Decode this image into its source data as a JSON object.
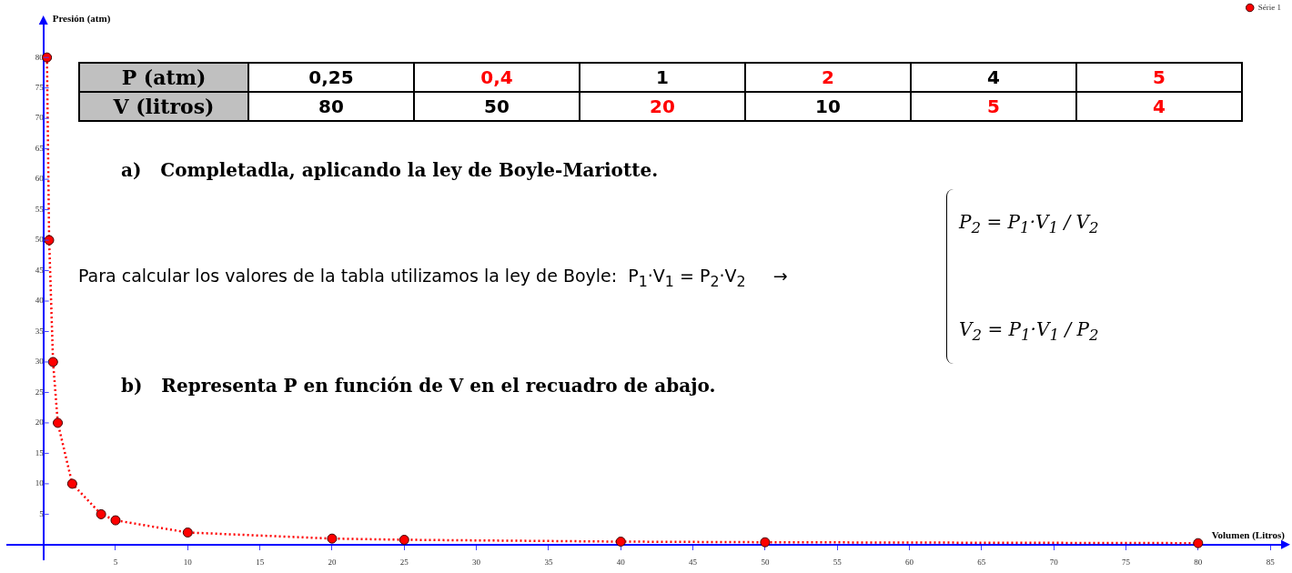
{
  "chart_data": {
    "type": "line",
    "xlabel": "Volumen (Litros)",
    "ylabel": "Presión (atm)",
    "x": [
      0.25,
      0.4,
      0.67,
      1,
      2,
      4,
      5,
      10,
      20,
      25,
      40,
      50,
      80
    ],
    "series": [
      {
        "name": "Série 1",
        "color": "#ff0000",
        "values": [
          80,
          50,
          30,
          20,
          10,
          5,
          4,
          2,
          1,
          0.8,
          0.5,
          0.4,
          0.25
        ]
      }
    ],
    "xlim": [
      -2.5,
      86
    ],
    "xticks": [
      5,
      10,
      15,
      20,
      25,
      30,
      35,
      40,
      45,
      50,
      55,
      60,
      65,
      70,
      75,
      80,
      85
    ],
    "ylim": [
      -2.5,
      86
    ],
    "yticks": [
      5,
      10,
      15,
      20,
      25,
      30,
      35,
      40,
      45,
      50,
      55,
      60,
      65,
      70,
      75,
      80
    ],
    "marker": "circle",
    "line_style": "dotted",
    "legend": "top right",
    "annotations": [
      "P (atm)",
      "0,25",
      "0,4",
      "1",
      "2",
      "4",
      "5",
      "V (litros)",
      "80",
      "50",
      "20",
      "10",
      "5",
      "4",
      "a)   Completadla, aplicando la ley de Boyle-Mariotte.",
      "Para calcular los valores de la tabla utilizamos la ley de Boyle:  P$_{1}$·V$_{1}$ = P$_{2}$·V$_{2}$     →",
      "P$_{2}$ = P$_{1}$·V$_{1}$ / V$_{2}$",
      "V$_{2}$ = P$_{1}$·V$_{1}$ / P$_{2}$",
      "b)   Representa P en función de V en el recuadro de abajo."
    ]
  }
}
